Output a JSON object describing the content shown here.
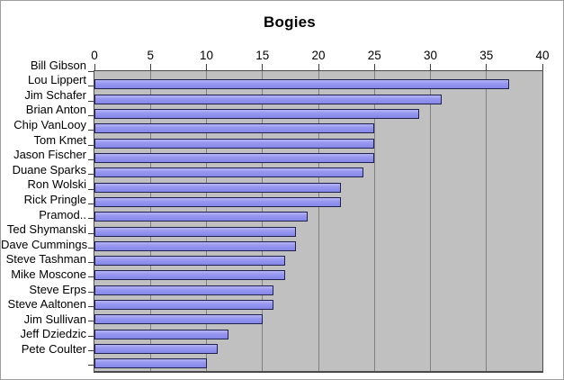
{
  "chart_data": {
    "type": "bar",
    "orientation": "horizontal",
    "title": "Bogies",
    "categories": [
      "Bill Gibson",
      "Lou Lippert",
      "Jim Schafer",
      "Brian Anton",
      "Chip VanLooy",
      "Tom Kmet",
      "Jason Fischer",
      "Duane Sparks",
      "Ron Wolski",
      "Rick Pringle",
      "Pramod..",
      "Ted Shymanski",
      "Dave Cummings",
      "Steve Tashman",
      "Mike Moscone",
      "Steve Erps",
      "Steve Aaltonen",
      "Jim Sullivan",
      "Jeff Dziedzic",
      "Pete Coulter"
    ],
    "values": [
      37,
      31,
      29,
      25,
      25,
      25,
      24,
      22,
      22,
      19,
      18,
      18,
      17,
      17,
      16,
      16,
      15,
      12,
      11,
      10
    ],
    "xlabel": "",
    "ylabel": "",
    "xlim": [
      0,
      40
    ],
    "x_ticks": [
      0,
      5,
      10,
      15,
      20,
      25,
      30,
      35,
      40
    ],
    "grid": true,
    "legend": false
  },
  "colors": {
    "bar_fill_light": "#b4b4f6",
    "bar_fill": "#9595f0",
    "bar_fill_dark": "#8787e8",
    "bar_border": "#20204e",
    "plot_bg": "#c0c0c0",
    "gridline": "#808080",
    "axis_line": "#4a4a4a",
    "tick": "#3c3c3c",
    "chart_bg": "#ffffff",
    "chart_border": "#9e9e9e",
    "text": "#000000"
  }
}
